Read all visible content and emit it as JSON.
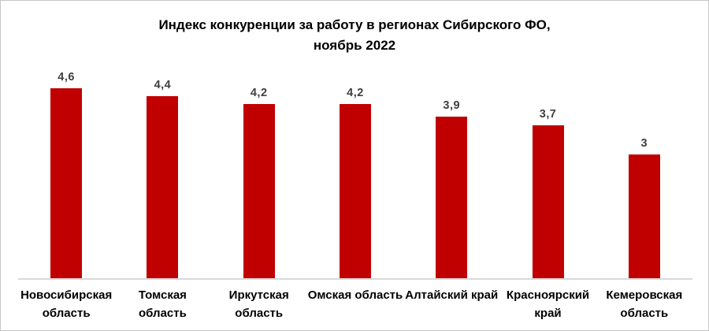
{
  "window": {
    "background": "#ffffff",
    "border_color": "#c6c6c6"
  },
  "chart_data": {
    "type": "bar",
    "title": "Индекс конкуренции за работу в регионах Сибирского ФО,",
    "subtitle": "ноябрь 2022",
    "categories": [
      "Новосибирская область",
      "Томская область",
      "Иркутская область",
      "Омская область",
      "Алтайский край",
      "Красноярский край",
      "Кемеровская область"
    ],
    "category_label_lines": [
      [
        "Новосибирская",
        "область"
      ],
      [
        "Томская",
        "область"
      ],
      [
        "Иркутская",
        "область"
      ],
      [
        "Омская область"
      ],
      [
        "Алтайский край"
      ],
      [
        "Красноярский",
        "край"
      ],
      [
        "Кемеровская",
        "область"
      ]
    ],
    "values": [
      4.6,
      4.4,
      4.2,
      4.2,
      3.9,
      3.7,
      3.0
    ],
    "value_labels": [
      "4,6",
      "4,4",
      "4,2",
      "4,2",
      "3,9",
      "3,7",
      "3"
    ],
    "ylim": [
      0,
      5
    ],
    "xlabel": "",
    "ylabel": "",
    "grid": false,
    "legend": "none",
    "bar_color": "#c00000",
    "value_label_color": "#3f3f3f",
    "axis_line_color": "#d9d9d9"
  }
}
